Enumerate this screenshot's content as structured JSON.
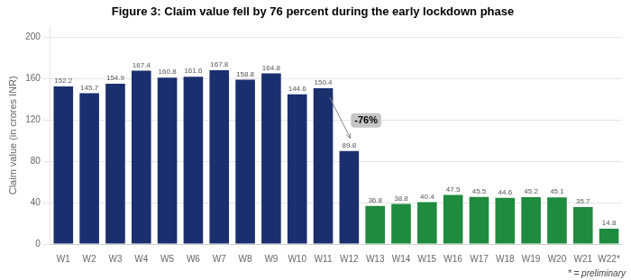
{
  "chart_data": {
    "type": "bar",
    "title": "Figure 3: Claim value fell by 76 percent during the early lockdown phase",
    "categories": [
      "W1",
      "W2",
      "W3",
      "W4",
      "W5",
      "W6",
      "W7",
      "W8",
      "W9",
      "W10",
      "W11",
      "W12",
      "W13",
      "W14",
      "W15",
      "W16",
      "W17",
      "W18",
      "W19",
      "W20",
      "W21",
      "W22*"
    ],
    "values": [
      152.2,
      145.7,
      154.9,
      167.4,
      160.8,
      161.6,
      167.8,
      158.8,
      164.8,
      144.6,
      150.4,
      89.8,
      36.8,
      38.8,
      40.4,
      47.5,
      45.5,
      44.6,
      45.2,
      45.1,
      35.7,
      14.8
    ],
    "colors": [
      "#1a2f6e",
      "#1a2f6e",
      "#1a2f6e",
      "#1a2f6e",
      "#1a2f6e",
      "#1a2f6e",
      "#1a2f6e",
      "#1a2f6e",
      "#1a2f6e",
      "#1a2f6e",
      "#1a2f6e",
      "#1a2f6e",
      "#1e8b3e",
      "#1e8b3e",
      "#1e8b3e",
      "#1e8b3e",
      "#1e8b3e",
      "#1e8b3e",
      "#1e8b3e",
      "#1e8b3e",
      "#1e8b3e",
      "#1e8b3e"
    ],
    "ylabel": "Claim value (in crores INR)",
    "ylim": [
      0,
      210
    ],
    "yticks": [
      0,
      40,
      80,
      120,
      160,
      200
    ],
    "grid": true,
    "data_labels": true,
    "annotations": [
      {
        "text": "-76%",
        "category": "W12"
      },
      {
        "text": "* = preliminary"
      }
    ]
  }
}
